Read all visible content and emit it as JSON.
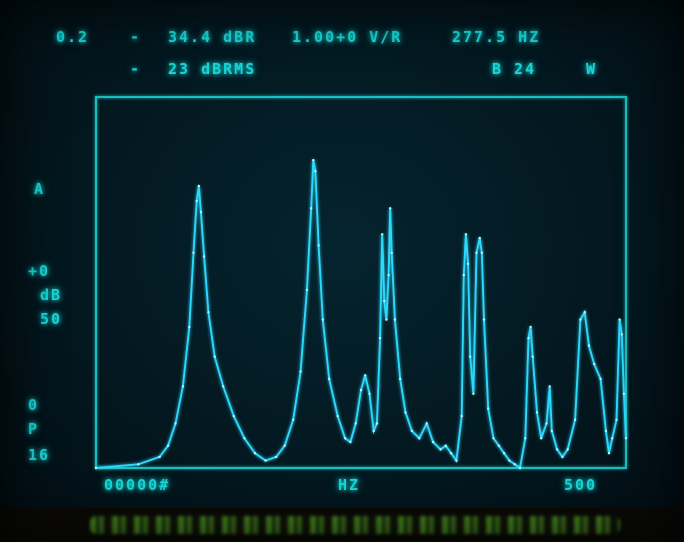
{
  "header": {
    "line1": {
      "f1": "0.2",
      "f2": "-",
      "f3": "34.4 dBR",
      "f4": "1.00+0 V/R",
      "f5": "277.5 HZ"
    },
    "line2": {
      "f1": "-",
      "f2": "23 dBRMS",
      "f3": "B 24",
      "f4": "W"
    }
  },
  "left_labels": {
    "a": "A",
    "offset": "+0",
    "db": "dB",
    "scale": "50",
    "zero": "0",
    "p": "P",
    "p_val": "16"
  },
  "bottom_labels": {
    "start": "00000#",
    "unit": "HZ",
    "end": "500"
  },
  "colors": {
    "trace": "#2bd9ff",
    "grid": "#1fd0d0",
    "text": "#19d6d6",
    "green_trace": "#6fe06a"
  },
  "chart_data": {
    "type": "line",
    "xlim": [
      0,
      500
    ],
    "ylim": [
      0,
      100
    ],
    "cursor_x": 277.5,
    "series": [
      {
        "values": [
          [
            0,
            0
          ],
          [
            40,
            1
          ],
          [
            60,
            3
          ],
          [
            68,
            6
          ],
          [
            75,
            12
          ],
          [
            82,
            22
          ],
          [
            88,
            38
          ],
          [
            92,
            58
          ],
          [
            95,
            72
          ],
          [
            97,
            76
          ],
          [
            99,
            69
          ],
          [
            102,
            57
          ],
          [
            106,
            42
          ],
          [
            112,
            30
          ],
          [
            120,
            22
          ],
          [
            130,
            14
          ],
          [
            140,
            8
          ],
          [
            150,
            4
          ],
          [
            160,
            2
          ],
          [
            170,
            3
          ],
          [
            178,
            6
          ],
          [
            186,
            13
          ],
          [
            193,
            26
          ],
          [
            199,
            48
          ],
          [
            203,
            70
          ],
          [
            205,
            83
          ],
          [
            207,
            80
          ],
          [
            210,
            60
          ],
          [
            214,
            40
          ],
          [
            220,
            24
          ],
          [
            228,
            14
          ],
          [
            235,
            8
          ],
          [
            240,
            7
          ],
          [
            245,
            12
          ],
          [
            250,
            21
          ],
          [
            254,
            25
          ],
          [
            258,
            20
          ],
          [
            262,
            10
          ],
          [
            265,
            12
          ],
          [
            268,
            35
          ],
          [
            270,
            63
          ],
          [
            272,
            45
          ],
          [
            274,
            40
          ],
          [
            276,
            52
          ],
          [
            277.5,
            70
          ],
          [
            279,
            58
          ],
          [
            282,
            40
          ],
          [
            287,
            24
          ],
          [
            292,
            15
          ],
          [
            298,
            10
          ],
          [
            305,
            8
          ],
          [
            312,
            12
          ],
          [
            318,
            7
          ],
          [
            325,
            5
          ],
          [
            330,
            6
          ],
          [
            335,
            4
          ],
          [
            340,
            2
          ],
          [
            345,
            14
          ],
          [
            347,
            52
          ],
          [
            349,
            63
          ],
          [
            351,
            55
          ],
          [
            353,
            30
          ],
          [
            356,
            20
          ],
          [
            359,
            58
          ],
          [
            362,
            62
          ],
          [
            364,
            58
          ],
          [
            366,
            40
          ],
          [
            370,
            16
          ],
          [
            375,
            8
          ],
          [
            380,
            6
          ],
          [
            385,
            4
          ],
          [
            390,
            2
          ],
          [
            395,
            1
          ],
          [
            400,
            0
          ],
          [
            405,
            8
          ],
          [
            408,
            35
          ],
          [
            410,
            38
          ],
          [
            412,
            30
          ],
          [
            416,
            15
          ],
          [
            420,
            8
          ],
          [
            425,
            12
          ],
          [
            428,
            22
          ],
          [
            430,
            10
          ],
          [
            435,
            5
          ],
          [
            440,
            3
          ],
          [
            445,
            5
          ],
          [
            452,
            13
          ],
          [
            457,
            40
          ],
          [
            461,
            42
          ],
          [
            465,
            33
          ],
          [
            470,
            28
          ],
          [
            476,
            24
          ],
          [
            481,
            10
          ],
          [
            484,
            4
          ],
          [
            487,
            8
          ],
          [
            491,
            13
          ],
          [
            494,
            40
          ],
          [
            496,
            36
          ],
          [
            498,
            20
          ],
          [
            500,
            8
          ]
        ]
      }
    ]
  }
}
